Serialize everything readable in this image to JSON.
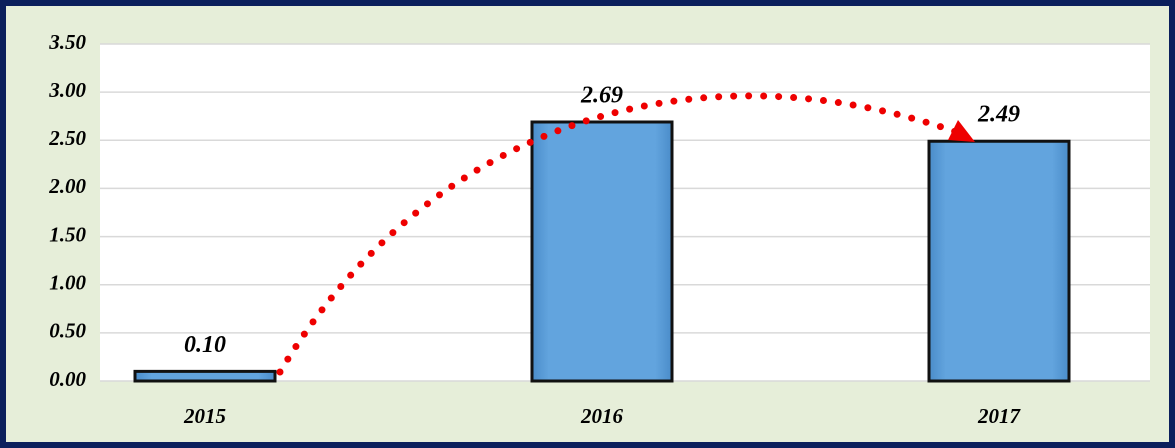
{
  "chart_data": {
    "type": "bar",
    "categories": [
      "2015",
      "2016",
      "2017"
    ],
    "values": [
      0.1,
      2.69,
      2.49
    ],
    "value_labels": [
      "0.10",
      "2.69",
      "2.49"
    ],
    "color": "#62a4de",
    "ylim": [
      0,
      3.5
    ],
    "yticks": [
      {
        "value": 0,
        "label": "0.00"
      },
      {
        "value": 0.5,
        "label": "0.50"
      },
      {
        "value": 1,
        "label": "1.00"
      },
      {
        "value": 1.5,
        "label": "1.50"
      },
      {
        "value": 2,
        "label": "2.00"
      },
      {
        "value": 2.5,
        "label": "2.50"
      },
      {
        "value": 3,
        "label": "3.00"
      },
      {
        "value": 3.5,
        "label": "3.50"
      }
    ],
    "grid": true
  }
}
